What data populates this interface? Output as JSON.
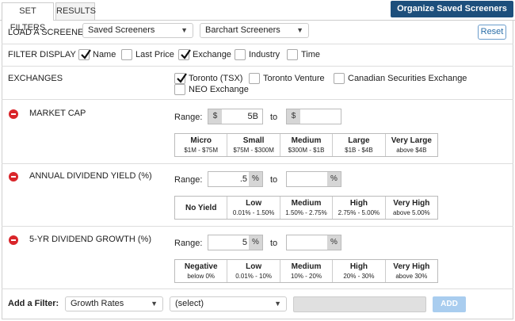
{
  "tabs": [
    "SET FILTERS",
    "RESULTS"
  ],
  "organize_button": "Organize Saved Screeners",
  "load": {
    "label": "LOAD A SCREENER:",
    "select1": "Saved Screeners",
    "select2": "Barchart Screeners",
    "reset": "Reset"
  },
  "filter_display": {
    "label": "FILTER DISPLAY",
    "options": [
      {
        "label": "Name",
        "checked": true
      },
      {
        "label": "Last Price",
        "checked": false
      },
      {
        "label": "Exchange",
        "checked": true
      },
      {
        "label": "Industry",
        "checked": false
      },
      {
        "label": "Time",
        "checked": false
      }
    ]
  },
  "exchanges": {
    "label": "EXCHANGES",
    "options": [
      {
        "label": "Toronto (TSX)",
        "checked": true
      },
      {
        "label": "Toronto Venture",
        "checked": false
      },
      {
        "label": "Canadian Securities Exchange",
        "checked": false
      },
      {
        "label": "NEO Exchange",
        "checked": false
      }
    ]
  },
  "filters": [
    {
      "title": "MARKET CAP",
      "range_label": "Range:",
      "to_label": "to",
      "unit": "$",
      "from_value": "5B",
      "to_value": "",
      "presets": [
        {
          "title": "Micro",
          "sub": "$1M - $75M"
        },
        {
          "title": "Small",
          "sub": "$75M - $300M"
        },
        {
          "title": "Medium",
          "sub": "$300M - $1B"
        },
        {
          "title": "Large",
          "sub": "$1B - $4B"
        },
        {
          "title": "Very Large",
          "sub": "above $4B"
        }
      ]
    },
    {
      "title": "ANNUAL DIVIDEND YIELD (%)",
      "range_label": "Range:",
      "to_label": "to",
      "unit": "%",
      "from_value": ".5",
      "to_value": "",
      "presets": [
        {
          "title": "No Yield",
          "sub": ""
        },
        {
          "title": "Low",
          "sub": "0.01% - 1.50%"
        },
        {
          "title": "Medium",
          "sub": "1.50% - 2.75%"
        },
        {
          "title": "High",
          "sub": "2.75% - 5.00%"
        },
        {
          "title": "Very High",
          "sub": "above 5.00%"
        }
      ]
    },
    {
      "title": "5-YR DIVIDEND GROWTH (%)",
      "range_label": "Range:",
      "to_label": "to",
      "unit": "%",
      "from_value": "5",
      "to_value": "",
      "presets": [
        {
          "title": "Negative",
          "sub": "below 0%"
        },
        {
          "title": "Low",
          "sub": "0.01% - 10%"
        },
        {
          "title": "Medium",
          "sub": "10% - 20%"
        },
        {
          "title": "High",
          "sub": "20% - 30%"
        },
        {
          "title": "Very High",
          "sub": "above 30%"
        }
      ]
    }
  ],
  "add_filter": {
    "label": "Add a Filter:",
    "select1": "Growth Rates",
    "select2": "(select)",
    "button": "ADD"
  },
  "colors": {
    "brand": "#1d4f7c",
    "remove": "#d9252a",
    "add_button": "#a9cdef"
  }
}
